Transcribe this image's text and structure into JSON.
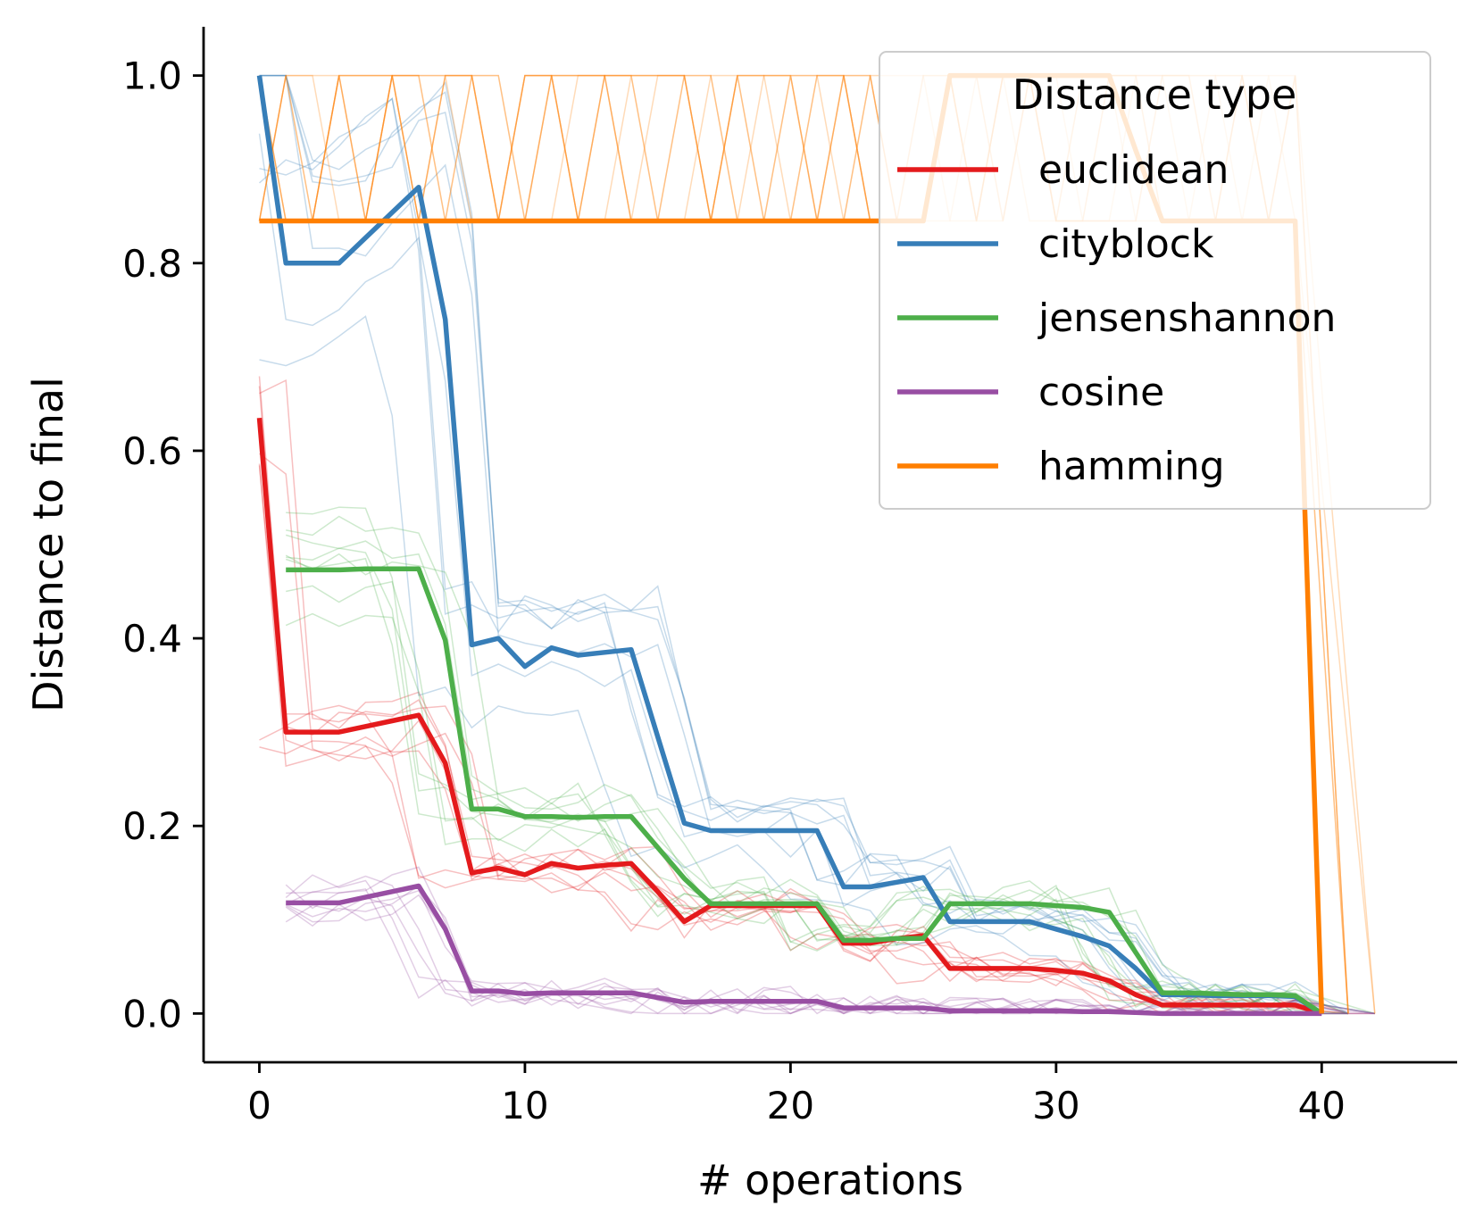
{
  "chart_data": {
    "type": "line",
    "xlabel": "# operations",
    "ylabel": "Distance to final",
    "xlim": [
      -2.1,
      45.1
    ],
    "ylim": [
      -0.052,
      1.052
    ],
    "xticks": [
      0,
      10,
      20,
      30,
      40
    ],
    "yticks": [
      0.0,
      0.2,
      0.4,
      0.6,
      0.8,
      1.0
    ],
    "xtick_labels": [
      "0",
      "10",
      "20",
      "30",
      "40"
    ],
    "ytick_labels": [
      "0.0",
      "0.2",
      "0.4",
      "0.6",
      "0.8",
      "1.0"
    ],
    "grid": false,
    "legend": {
      "title": "Distance type",
      "position": "upper right"
    },
    "series": [
      {
        "name": "euclidean",
        "color": "#e41a1c",
        "x": [
          0,
          1,
          2,
          3,
          4,
          5,
          6,
          7,
          8,
          9,
          10,
          11,
          12,
          13,
          14,
          15,
          16,
          17,
          18,
          19,
          20,
          21,
          22,
          23,
          24,
          25,
          26,
          27,
          28,
          29,
          30,
          31,
          32,
          33,
          34,
          35,
          36,
          37,
          38,
          39,
          40
        ],
        "y": [
          0.635,
          0.3,
          0.3,
          0.3,
          0.306,
          0.312,
          0.318,
          0.267,
          0.15,
          0.155,
          0.148,
          0.16,
          0.155,
          0.158,
          0.16,
          0.13,
          0.098,
          0.115,
          0.115,
          0.115,
          0.115,
          0.115,
          0.075,
          0.075,
          0.08,
          0.083,
          0.048,
          0.048,
          0.048,
          0.048,
          0.046,
          0.043,
          0.035,
          0.02,
          0.009,
          0.009,
          0.009,
          0.009,
          0.009,
          0.009,
          0.0
        ]
      },
      {
        "name": "cityblock",
        "color": "#377eb8",
        "x": [
          0,
          1,
          2,
          3,
          4,
          5,
          6,
          7,
          8,
          9,
          10,
          11,
          12,
          13,
          14,
          15,
          16,
          17,
          18,
          19,
          20,
          21,
          22,
          23,
          24,
          25,
          26,
          27,
          28,
          29,
          30,
          31,
          32,
          33,
          34,
          35,
          36,
          37,
          38,
          39,
          40
        ],
        "y": [
          1.0,
          0.8,
          0.8,
          0.8,
          0.827,
          0.854,
          0.881,
          0.74,
          0.393,
          0.4,
          0.37,
          0.39,
          0.382,
          0.385,
          0.388,
          0.295,
          0.203,
          0.195,
          0.195,
          0.195,
          0.195,
          0.195,
          0.135,
          0.135,
          0.14,
          0.145,
          0.098,
          0.098,
          0.098,
          0.098,
          0.09,
          0.082,
          0.072,
          0.048,
          0.02,
          0.02,
          0.019,
          0.019,
          0.019,
          0.018,
          0.0
        ]
      },
      {
        "name": "jensenshannon",
        "color": "#4daf4a",
        "x": [
          1,
          2,
          3,
          4,
          5,
          6,
          7,
          8,
          9,
          10,
          11,
          12,
          13,
          14,
          15,
          16,
          17,
          18,
          19,
          20,
          21,
          22,
          23,
          24,
          25,
          26,
          27,
          28,
          29,
          30,
          31,
          32,
          33,
          34,
          35,
          36,
          37,
          38,
          39,
          40
        ],
        "y": [
          0.473,
          0.473,
          0.473,
          0.474,
          0.474,
          0.474,
          0.398,
          0.218,
          0.218,
          0.21,
          0.21,
          0.209,
          0.21,
          0.21,
          0.177,
          0.144,
          0.117,
          0.117,
          0.117,
          0.117,
          0.117,
          0.078,
          0.078,
          0.08,
          0.08,
          0.117,
          0.117,
          0.117,
          0.117,
          0.115,
          0.113,
          0.108,
          0.065,
          0.022,
          0.022,
          0.021,
          0.02,
          0.02,
          0.019,
          0.0
        ]
      },
      {
        "name": "cosine",
        "color": "#984ea3",
        "x": [
          1,
          2,
          3,
          4,
          5,
          6,
          7,
          8,
          9,
          10,
          11,
          12,
          13,
          14,
          15,
          16,
          17,
          18,
          19,
          20,
          21,
          22,
          23,
          24,
          25,
          26,
          27,
          28,
          29,
          30,
          31,
          32,
          33,
          34,
          35,
          36,
          37,
          38,
          39,
          40
        ],
        "y": [
          0.118,
          0.118,
          0.118,
          0.124,
          0.13,
          0.136,
          0.09,
          0.024,
          0.024,
          0.021,
          0.022,
          0.022,
          0.022,
          0.022,
          0.017,
          0.012,
          0.013,
          0.013,
          0.013,
          0.013,
          0.013,
          0.006,
          0.006,
          0.006,
          0.006,
          0.003,
          0.003,
          0.003,
          0.003,
          0.003,
          0.002,
          0.002,
          0.001,
          0.0,
          0.0,
          0.0,
          0.0,
          0.0,
          0.0,
          0.0
        ]
      },
      {
        "name": "hamming",
        "color": "#ff7f00",
        "x": [
          0,
          1,
          2,
          3,
          4,
          5,
          6,
          7,
          8,
          9,
          10,
          11,
          12,
          13,
          14,
          15,
          16,
          17,
          18,
          19,
          20,
          21,
          22,
          23,
          24,
          25,
          26,
          27,
          28,
          29,
          30,
          31,
          32,
          33,
          34,
          35,
          36,
          37,
          38,
          39,
          40
        ],
        "y": [
          0.845,
          0.845,
          0.845,
          0.845,
          0.845,
          0.845,
          0.845,
          0.845,
          0.845,
          0.845,
          0.845,
          0.845,
          0.845,
          0.845,
          0.845,
          0.845,
          0.845,
          0.845,
          0.845,
          0.845,
          0.845,
          0.845,
          0.845,
          0.845,
          0.845,
          0.845,
          1.0,
          1.0,
          1.0,
          1.0,
          1.0,
          1.0,
          1.0,
          0.92,
          0.845,
          0.845,
          0.845,
          0.845,
          0.845,
          0.845,
          0.0
        ]
      }
    ]
  }
}
